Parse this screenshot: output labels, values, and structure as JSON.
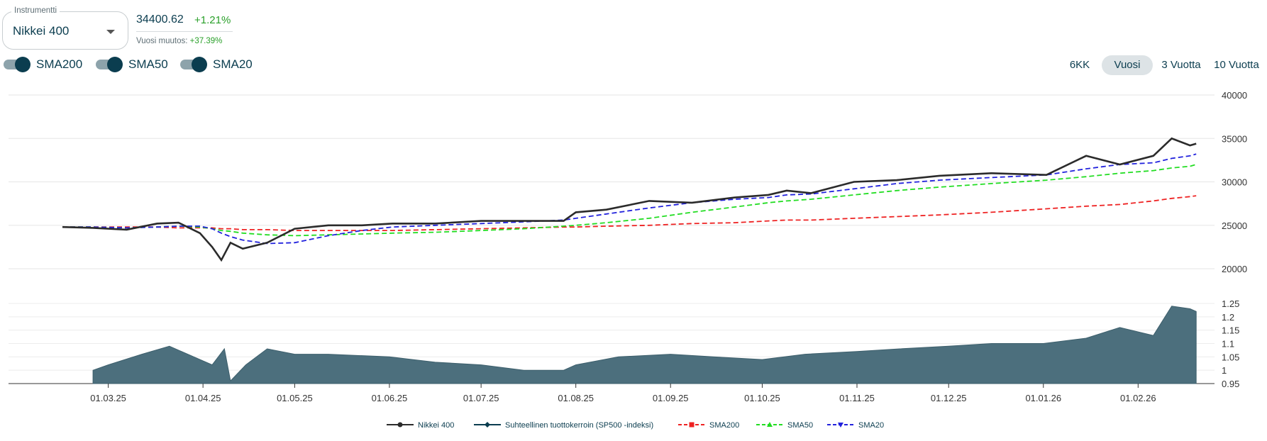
{
  "instrument": {
    "label": "Instrumentti",
    "value": "Nikkei 400"
  },
  "quote": {
    "price": "34400.62",
    "change": "+1.21%",
    "yearly_label": "Vuosi muutos:",
    "yearly_value": "+37.39%"
  },
  "toggles": [
    {
      "label": "SMA200",
      "on": true
    },
    {
      "label": "SMA50",
      "on": true
    },
    {
      "label": "SMA20",
      "on": true
    }
  ],
  "ranges": [
    {
      "label": "6KK",
      "active": false
    },
    {
      "label": "Vuosi",
      "active": true
    },
    {
      "label": "3 Vuotta",
      "active": false
    },
    {
      "label": "10 Vuotta",
      "active": false
    }
  ],
  "colors": {
    "price_line": "#2b2b2b",
    "relative_fill": "#4c6f7d",
    "sma200": "#ee2222",
    "sma50": "#22dd22",
    "sma20": "#2222dd",
    "accent": "#0b3d4f",
    "positive": "#2aa02a"
  },
  "chart_data": [
    {
      "type": "line",
      "x_ticks": [
        "01.03.25",
        "01.04.25",
        "01.05.25",
        "01.06.25",
        "01.07.25",
        "01.08.25",
        "01.09.25",
        "01.10.25",
        "01.11.25",
        "01.12.25",
        "01.01.26",
        "01.02.26"
      ],
      "y_ticks": [
        "40000",
        "35000",
        "30000",
        "25000",
        "20000"
      ],
      "ylim": [
        17500,
        40000
      ],
      "grid": true,
      "x": [
        "2025-02-14",
        "2025-02-24",
        "2025-03-07",
        "2025-03-17",
        "2025-03-24",
        "2025-03-31",
        "2025-04-04",
        "2025-04-07",
        "2025-04-10",
        "2025-04-14",
        "2025-04-22",
        "2025-05-01",
        "2025-05-12",
        "2025-05-23",
        "2025-06-02",
        "2025-06-16",
        "2025-07-01",
        "2025-07-15",
        "2025-07-28",
        "2025-08-01",
        "2025-08-11",
        "2025-08-25",
        "2025-09-08",
        "2025-09-22",
        "2025-10-03",
        "2025-10-09",
        "2025-10-17",
        "2025-10-31",
        "2025-11-14",
        "2025-11-28",
        "2025-12-15",
        "2026-01-02",
        "2026-01-15",
        "2026-01-26",
        "2026-02-06",
        "2026-02-12",
        "2026-02-18",
        "2026-02-20"
      ],
      "series": [
        {
          "name": "Nikkei 400",
          "values": [
            24800,
            24700,
            24500,
            25200,
            25300,
            24100,
            22500,
            21000,
            23000,
            22300,
            23000,
            24600,
            25000,
            25000,
            25200,
            25200,
            25500,
            25500,
            25500,
            26500,
            26800,
            27800,
            27600,
            28200,
            28500,
            29000,
            28700,
            30000,
            30200,
            30700,
            31000,
            30800,
            33000,
            32000,
            33000,
            35000,
            34200,
            34400
          ]
        },
        {
          "name": "SMA200",
          "values": [
            24800,
            24800,
            24800,
            24800,
            24700,
            24700,
            24700,
            24600,
            24600,
            24500,
            24500,
            24400,
            24400,
            24400,
            24400,
            24500,
            24600,
            24700,
            24800,
            24800,
            24900,
            25000,
            25200,
            25300,
            25500,
            25600,
            25600,
            25800,
            26000,
            26200,
            26500,
            26900,
            27200,
            27400,
            27800,
            28100,
            28300,
            28400
          ]
        },
        {
          "name": "SMA50",
          "values": [
            24800,
            24800,
            24700,
            24800,
            24900,
            24800,
            24600,
            24400,
            24300,
            24100,
            23900,
            23800,
            23900,
            24000,
            24100,
            24200,
            24400,
            24600,
            24900,
            25000,
            25300,
            25800,
            26500,
            27100,
            27600,
            27800,
            28000,
            28500,
            29000,
            29400,
            29800,
            30200,
            30600,
            31000,
            31300,
            31600,
            31800,
            32000
          ]
        },
        {
          "name": "SMA20",
          "values": [
            24800,
            24800,
            24700,
            24800,
            24900,
            24900,
            24600,
            24100,
            23700,
            23300,
            22900,
            23000,
            23800,
            24400,
            24800,
            25000,
            25200,
            25400,
            25600,
            25800,
            26300,
            27000,
            27600,
            28000,
            28200,
            28500,
            28600,
            29200,
            29800,
            30200,
            30500,
            30800,
            31500,
            32000,
            32200,
            32700,
            33000,
            33200
          ]
        }
      ]
    },
    {
      "type": "area",
      "y_ticks": [
        "1.25",
        "1.2",
        "1.15",
        "1.1",
        "1.05",
        "1",
        "0.95"
      ],
      "ylim": [
        0.94,
        1.27
      ],
      "x": [
        "2025-02-24",
        "2025-03-01",
        "2025-03-12",
        "2025-03-21",
        "2025-03-31",
        "2025-04-04",
        "2025-04-08",
        "2025-04-10",
        "2025-04-15",
        "2025-04-22",
        "2025-05-01",
        "2025-05-12",
        "2025-06-01",
        "2025-06-16",
        "2025-07-01",
        "2025-07-15",
        "2025-07-28",
        "2025-08-01",
        "2025-08-15",
        "2025-09-01",
        "2025-09-15",
        "2025-10-01",
        "2025-10-15",
        "2025-11-01",
        "2025-11-15",
        "2025-12-01",
        "2025-12-15",
        "2026-01-01",
        "2026-01-15",
        "2026-01-26",
        "2026-02-06",
        "2026-02-12",
        "2026-02-18",
        "2026-02-20"
      ],
      "series": [
        {
          "name": "Suhteellinen tuottokerroin (SP500 -indeksi)",
          "values": [
            1.0,
            1.02,
            1.06,
            1.09,
            1.04,
            1.02,
            1.08,
            0.96,
            1.02,
            1.08,
            1.06,
            1.06,
            1.05,
            1.03,
            1.02,
            1.0,
            1.0,
            1.02,
            1.05,
            1.06,
            1.05,
            1.04,
            1.06,
            1.07,
            1.08,
            1.09,
            1.1,
            1.1,
            1.12,
            1.16,
            1.13,
            1.24,
            1.23,
            1.22
          ]
        }
      ]
    }
  ],
  "legend": [
    {
      "label": "Nikkei 400",
      "marker": "circle",
      "dashed": false
    },
    {
      "label": "Suhteellinen tuottokerroin (SP500 -indeksi)",
      "marker": "diamond",
      "dashed": false
    },
    {
      "label": "SMA200",
      "marker": "square",
      "dashed": true
    },
    {
      "label": "SMA50",
      "marker": "triangle",
      "dashed": true
    },
    {
      "label": "SMA20",
      "marker": "triangle-down",
      "dashed": true
    }
  ]
}
